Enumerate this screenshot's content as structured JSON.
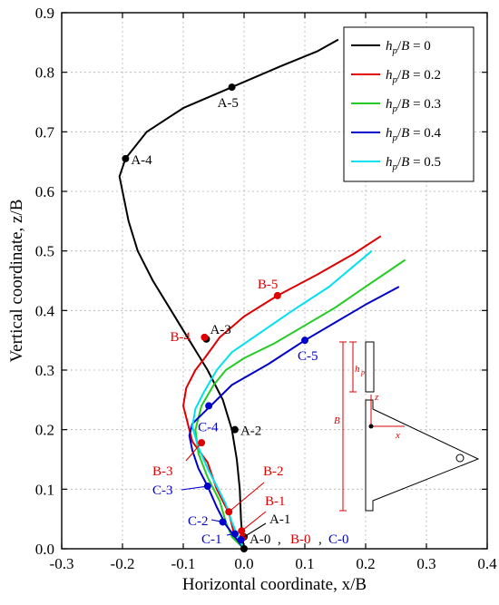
{
  "chart_data": {
    "type": "line",
    "xlabel": "Horizontal coordinate, x/B",
    "ylabel": "Vertical coordinate, z/B",
    "xlim": [
      -0.3,
      0.4
    ],
    "ylim": [
      0.0,
      0.9
    ],
    "xticks": [
      -0.3,
      -0.2,
      -0.1,
      0.0,
      0.1,
      0.2,
      0.3,
      0.4
    ],
    "xtick_labels": [
      "-0.3",
      "-0.2",
      "-0.1",
      "0.0",
      "0.1",
      "0.2",
      "0.3",
      "0.4"
    ],
    "yticks": [
      0.0,
      0.1,
      0.2,
      0.3,
      0.4,
      0.5,
      0.6,
      0.7,
      0.8,
      0.9
    ],
    "ytick_labels": [
      "0.0",
      "0.1",
      "0.2",
      "0.3",
      "0.4",
      "0.5",
      "0.6",
      "0.7",
      "0.8",
      "0.9"
    ],
    "grid": true,
    "legend_position": "top-right",
    "series": [
      {
        "name": "hp/B = 0",
        "color": "#000000",
        "x": [
          0.0,
          -0.003,
          -0.005,
          -0.007,
          -0.012,
          -0.02,
          -0.035,
          -0.06,
          -0.09,
          -0.12,
          -0.15,
          -0.175,
          -0.19,
          -0.205,
          -0.195,
          -0.16,
          -0.1,
          -0.02,
          0.06,
          0.12,
          0.155
        ],
        "y": [
          0.0,
          0.02,
          0.05,
          0.1,
          0.15,
          0.2,
          0.25,
          0.3,
          0.35,
          0.4,
          0.45,
          0.5,
          0.55,
          0.625,
          0.655,
          0.7,
          0.74,
          0.775,
          0.81,
          0.835,
          0.855
        ]
      },
      {
        "name": "hp/B = 0.2",
        "color": "#e00000",
        "x": [
          0.0,
          -0.015,
          -0.02,
          -0.025,
          -0.045,
          -0.06,
          -0.085,
          -0.1,
          -0.095,
          -0.08,
          -0.065,
          -0.04,
          0.0,
          0.055,
          0.12,
          0.18,
          0.225
        ],
        "y": [
          0.0,
          0.02,
          0.04,
          0.06,
          0.1,
          0.145,
          0.18,
          0.24,
          0.27,
          0.3,
          0.32,
          0.355,
          0.39,
          0.425,
          0.46,
          0.495,
          0.525
        ]
      },
      {
        "name": "hp/B = 0.3",
        "color": "#22cc22",
        "x": [
          0.0,
          -0.02,
          -0.03,
          -0.04,
          -0.06,
          -0.075,
          -0.08,
          -0.07,
          -0.05,
          -0.03,
          0.0,
          0.05,
          0.1,
          0.15,
          0.2,
          0.265
        ],
        "y": [
          0.0,
          0.02,
          0.045,
          0.08,
          0.12,
          0.16,
          0.2,
          0.24,
          0.275,
          0.3,
          0.32,
          0.345,
          0.375,
          0.405,
          0.44,
          0.485
        ]
      },
      {
        "name": "hp/B = 0.4",
        "color": "#0000cc",
        "x": [
          0.0,
          -0.015,
          -0.03,
          -0.045,
          -0.06,
          -0.075,
          -0.085,
          -0.09,
          -0.085,
          -0.07,
          -0.055,
          -0.02,
          0.04,
          0.1,
          0.15,
          0.2,
          0.255
        ],
        "y": [
          0.0,
          0.02,
          0.04,
          0.07,
          0.105,
          0.135,
          0.165,
          0.19,
          0.21,
          0.225,
          0.24,
          0.275,
          0.31,
          0.35,
          0.38,
          0.41,
          0.44
        ]
      },
      {
        "name": "hp/B = 0.5",
        "color": "#00e0f0",
        "x": [
          0.0,
          -0.01,
          -0.02,
          -0.03,
          -0.045,
          -0.06,
          -0.075,
          -0.085,
          -0.08,
          -0.065,
          -0.045,
          -0.02,
          0.03,
          0.08,
          0.14,
          0.21
        ],
        "y": [
          0.0,
          0.02,
          0.045,
          0.075,
          0.105,
          0.135,
          0.17,
          0.205,
          0.235,
          0.265,
          0.3,
          0.33,
          0.365,
          0.4,
          0.44,
          0.5
        ]
      }
    ],
    "markers": [
      {
        "label": "A-0",
        "x": 0.0,
        "y": 0.0,
        "color": "#000000"
      },
      {
        "label": "A-1",
        "x": 0.0,
        "y": 0.02,
        "color": "#000000"
      },
      {
        "label": "A-2",
        "x": -0.015,
        "y": 0.2,
        "color": "#000000"
      },
      {
        "label": "A-3",
        "x": -0.062,
        "y": 0.352,
        "color": "#000000"
      },
      {
        "label": "A-4",
        "x": -0.195,
        "y": 0.655,
        "color": "#000000"
      },
      {
        "label": "A-5",
        "x": -0.02,
        "y": 0.775,
        "color": "#000000"
      },
      {
        "label": "B-0",
        "x": -0.002,
        "y": 0.02,
        "color": "#e00000"
      },
      {
        "label": "B-1",
        "x": -0.004,
        "y": 0.03,
        "color": "#e00000"
      },
      {
        "label": "B-2",
        "x": -0.025,
        "y": 0.062,
        "color": "#e00000"
      },
      {
        "label": "B-3",
        "x": -0.07,
        "y": 0.178,
        "color": "#e00000"
      },
      {
        "label": "B-4",
        "x": -0.065,
        "y": 0.355,
        "color": "#e00000"
      },
      {
        "label": "B-5",
        "x": 0.055,
        "y": 0.425,
        "color": "#e00000"
      },
      {
        "label": "C-0",
        "x": -0.005,
        "y": 0.015,
        "color": "#0000cc"
      },
      {
        "label": "C-1",
        "x": -0.015,
        "y": 0.025,
        "color": "#0000cc"
      },
      {
        "label": "C-2",
        "x": -0.035,
        "y": 0.045,
        "color": "#0000cc"
      },
      {
        "label": "C-3",
        "x": -0.06,
        "y": 0.105,
        "color": "#0000cc"
      },
      {
        "label": "C-4",
        "x": -0.058,
        "y": 0.24,
        "color": "#0000cc"
      },
      {
        "label": "C-5",
        "x": 0.1,
        "y": 0.35,
        "color": "#0000cc"
      }
    ],
    "inset_labels": {
      "hp": "h",
      "hp_sub": "p",
      "B": "B",
      "x": "x",
      "z": "z"
    }
  }
}
